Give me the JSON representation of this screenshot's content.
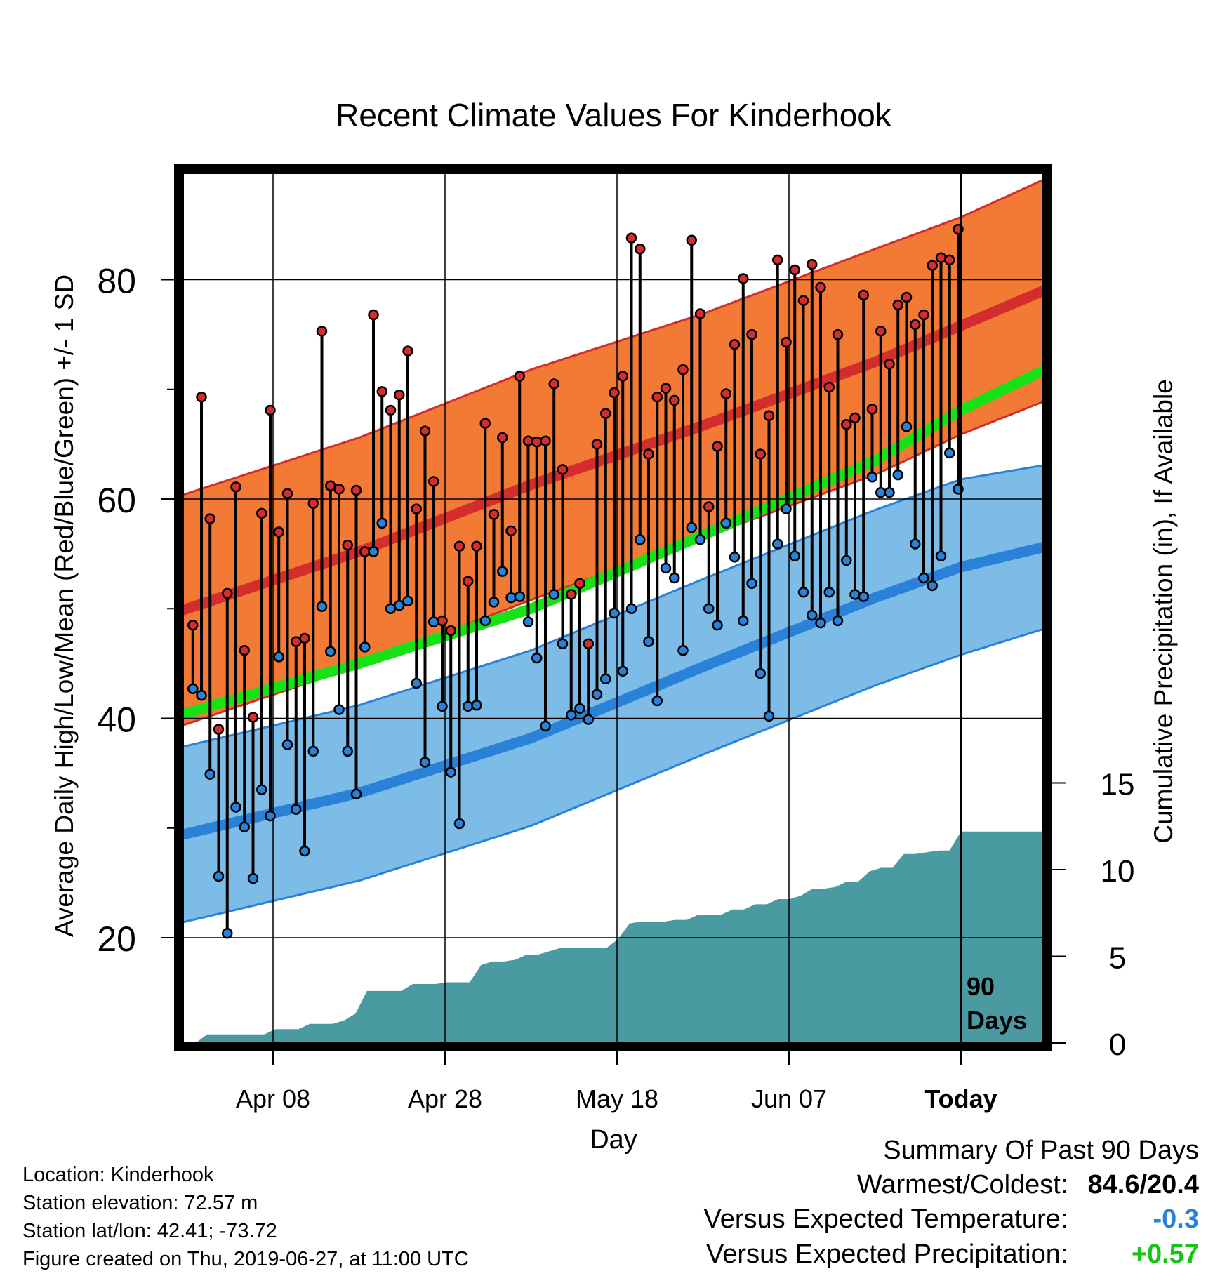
{
  "chart_data": {
    "type": "line",
    "title": "Recent Climate Values For Kinderhook",
    "xlabel": "Day",
    "ylabel_left": "Average Daily High/Low/Mean (Red/Blue/Green) +/- 1 SD",
    "ylabel_right": "Cumulative Precipitation (in), If Available",
    "x_ticks": [
      "Apr 08",
      "Apr 28",
      "May 18",
      "Jun 07",
      "Today"
    ],
    "ylim_left": [
      11,
      89
    ],
    "y_ticks_left": [
      "20",
      "40",
      "60",
      "80"
    ],
    "ylim_right": [
      0,
      30
    ],
    "y_ticks_right": [
      "0",
      "5",
      "10",
      "15"
    ],
    "grid": true,
    "today_marker_label": "90 Days",
    "x_days_from_today": [
      -90,
      -70,
      -50,
      -30,
      -10,
      0,
      9
    ],
    "normal_high": [
      50,
      55.2,
      61.3,
      66.7,
      72.5,
      75.8,
      78.8
    ],
    "normal_high_sd": [
      10.5,
      10.4,
      10.5,
      10.2,
      10.3,
      9.9,
      10.1
    ],
    "normal_low": [
      29.5,
      33.2,
      38.2,
      44.7,
      51.0,
      53.8,
      55.5
    ],
    "normal_low_sd": [
      8,
      8,
      8,
      8,
      8,
      8,
      7.5
    ],
    "normal_mean": [
      40.5,
      45.0,
      50.0,
      56.7,
      63.5,
      68.1,
      71.5
    ],
    "series": [
      {
        "name": "High",
        "color": "#d42d2d",
        "values": [
          48.5,
          69.3,
          58.2,
          39.0,
          51.4,
          61.1,
          46.2,
          40.1,
          58.7,
          68.1,
          57.0,
          60.5,
          47.0,
          47.3,
          59.6,
          75.3,
          61.2,
          60.9,
          55.8,
          60.8,
          55.2,
          76.8,
          69.8,
          68.1,
          69.5,
          73.5,
          59.1,
          66.2,
          61.6,
          48.9,
          48.0,
          55.7,
          52.5,
          55.7,
          66.9,
          58.6,
          65.6,
          57.1,
          71.2,
          65.3,
          65.2,
          65.3,
          70.5,
          62.7,
          51.3,
          52.3,
          46.8,
          65.0,
          67.8,
          69.7,
          71.2,
          83.8,
          82.8,
          64.1,
          69.3,
          70.1,
          69.0,
          71.8,
          83.6,
          76.9,
          59.3,
          64.8,
          69.6,
          74.1,
          80.1,
          75.0,
          64.1,
          67.6,
          81.8,
          74.3,
          80.9,
          78.1,
          81.4,
          79.3,
          70.2,
          75.0,
          66.8,
          67.4,
          78.6,
          68.2,
          75.3,
          72.3,
          77.7,
          78.4,
          75.9,
          76.8,
          81.3,
          82.0,
          81.8,
          84.6
        ],
        "lows": [
          42.7,
          42.1,
          34.9,
          25.6,
          20.4,
          31.9,
          30.1,
          25.4,
          33.5,
          31.1,
          45.6,
          37.6,
          31.7,
          27.9,
          37.0,
          50.2,
          46.1,
          40.8,
          37.0,
          33.1,
          46.5,
          55.2,
          57.8,
          50.0,
          50.3,
          50.7,
          43.2,
          36.0,
          48.8,
          41.1,
          35.1,
          30.4,
          41.1,
          41.2,
          48.9,
          50.6,
          53.4,
          51.0,
          51.1,
          48.8,
          45.5,
          39.3,
          51.3,
          46.8,
          40.3,
          40.9,
          39.9,
          42.2,
          43.6,
          49.6,
          44.3,
          50.0,
          56.3,
          47.0,
          41.6,
          53.7,
          52.8,
          46.2,
          57.4,
          56.3,
          50.0,
          48.5,
          57.8,
          54.7,
          48.9,
          52.3,
          44.1,
          40.2,
          55.9,
          59.1,
          54.8,
          51.5,
          49.4,
          48.7,
          51.5,
          48.9,
          54.4,
          51.3,
          51.1,
          62.0,
          60.6,
          60.6,
          62.2,
          66.6,
          55.9,
          52.8,
          52.1,
          54.8,
          64.2,
          60.9
        ]
      },
      {
        "name": "Low",
        "color": "#2a82d8"
      },
      {
        "name": "Cumulative Precipitation",
        "color": "#4a9aa2",
        "values": [
          0,
          0.5,
          0.5,
          0.5,
          0.5,
          0.5,
          0.5,
          0.8,
          0.8,
          0.8,
          1.1,
          1.1,
          1.1,
          1.3,
          1.7,
          3.0,
          3.0,
          3.0,
          3.0,
          3.4,
          3.4,
          3.4,
          3.5,
          3.5,
          3.5,
          4.5,
          4.7,
          4.7,
          4.8,
          5.1,
          5.1,
          5.3,
          5.5,
          5.5,
          5.5,
          5.5,
          5.5,
          6.0,
          6.9,
          7.0,
          7.0,
          7.0,
          7.1,
          7.1,
          7.4,
          7.4,
          7.4,
          7.7,
          7.7,
          8.0,
          8.0,
          8.3,
          8.3,
          8.5,
          8.9,
          8.9,
          9.0,
          9.3,
          9.3,
          9.9,
          10.1,
          10.1,
          10.9,
          10.9,
          11.0,
          11.1,
          11.1,
          12.2
        ]
      },
      {
        "name": "Mean",
        "color": "#16e216"
      }
    ]
  },
  "info": {
    "location": "Location: Kinderhook",
    "elevation": "Station elevation: 72.57 m",
    "latlon": "Station lat/lon: 42.41; -73.72",
    "created": "Figure created on Thu, 2019-06-27, at 11:00 UTC"
  },
  "summary": {
    "heading": "Summary Of Past 90 Days",
    "warmest_label": "Warmest/Coldest:",
    "warmest_value": "84.6/20.4",
    "temp_label": "Versus Expected Temperature:",
    "temp_value": "-0.3",
    "temp_color": "#2a82d8",
    "precip_label": "Versus Expected Precipitation:",
    "precip_value": "+0.57",
    "precip_color": "#16c416"
  }
}
